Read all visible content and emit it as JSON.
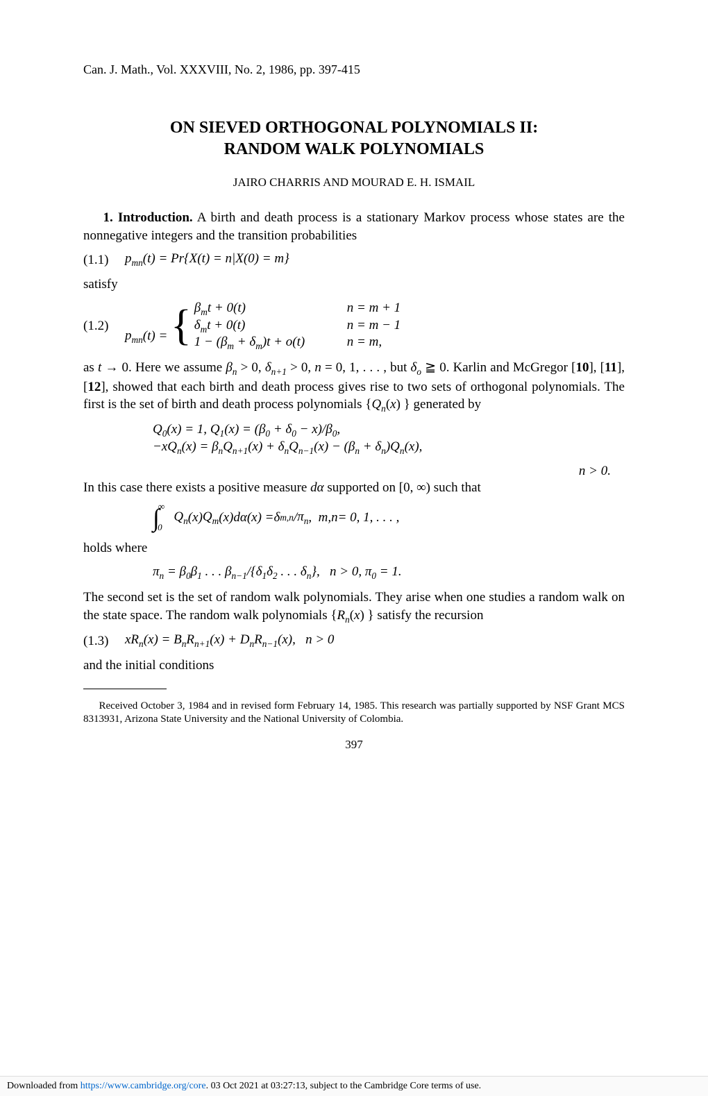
{
  "journal_header": "Can. J. Math., Vol. XXXVIII, No. 2, 1986, pp. 397-415",
  "title_line1": "ON SIEVED ORTHOGONAL POLYNOMIALS II:",
  "title_line2": "RANDOM WALK POLYNOMIALS",
  "authors": "JAIRO CHARRIS AND MOURAD E. H. ISMAIL",
  "section1_label": "1. Introduction.",
  "intro_text": " A birth and death process is a stationary Markov process whose states are the nonnegative integers and the transition probabilities",
  "eq11_num": "(1.1)",
  "eq11": "p_{mn}(t) = Pr{X(t) = n|X(0) = m}",
  "satisfy": "satisfy",
  "eq12_num": "(1.2)",
  "eq12_lhs": "p_{mn}(t) = ",
  "eq12_case1_l": "β_m t + 0(t)",
  "eq12_case1_r": "n = m + 1",
  "eq12_case2_l": "δ_m t + 0(t)",
  "eq12_case2_r": "n = m − 1",
  "eq12_case3_l": "1 − (β_m + δ_m)t + o(t)",
  "eq12_case3_r": "n = m,",
  "para_after12": "as t → 0. Here we assume β_n > 0, δ_{n+1} > 0, n = 0, 1, . . . , but δ_o ≧ 0. Karlin and McGregor [10], [11], [12], showed that each birth and death process gives rise to two sets of orthogonal polynomials. The first is the set of birth and death process polynomials {Q_n(x) } generated by",
  "qeq_line1": "Q_0(x) = 1, Q_1(x) = (β_0 + δ_0 − x)/β_0,",
  "qeq_line2": "−xQ_n(x) = β_n Q_{n+1}(x) + δ_n Q_{n−1}(x) − (β_n + δ_n)Q_n(x),",
  "qeq_line3": "n > 0.",
  "para_case": "In this case there exists a positive measure dα supported on [0, ∞) such that",
  "integral_eq": "∫_0^∞ Q_n(x)Q_m(x)dα(x) = δ_{m,n}/π_n,   m, n = 0, 1, . . . ,",
  "holds_where": "holds where",
  "pi_eq": "π_n = β_0 β_1 . . . β_{n−1}/{δ_1 δ_2 . . . δ_n},   n > 0, π_0 = 1.",
  "para_second_set": "The second set is the set of random walk polynomials. They arise when one studies a random walk on the state space. The random walk polynomials {R_n(x) } satisfy the recursion",
  "eq13_num": "(1.3)",
  "eq13": "xR_n(x) = B_n R_{n+1}(x) + D_n R_{n−1}(x),   n > 0",
  "initial_cond": "and the initial conditions",
  "footnote": "Received October 3, 1984 and in revised form February 14, 1985. This research was partially supported by NSF Grant MCS 8313931, Arizona State University and the National University of Colombia.",
  "page_number": "397",
  "download_prefix": "Downloaded from ",
  "download_url": "https://www.cambridge.org/core",
  "download_suffix": ". 03 Oct 2021 at 03:27:13, subject to the Cambridge Core terms of use."
}
